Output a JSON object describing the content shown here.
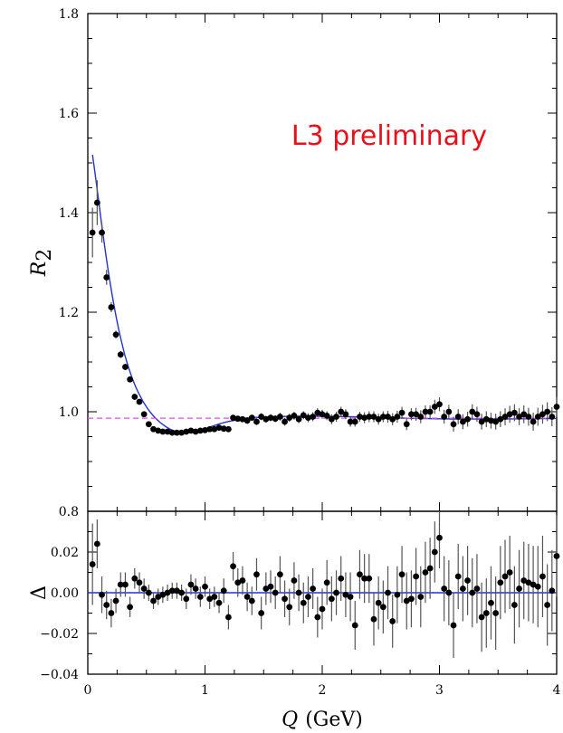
{
  "chart_data": [
    {
      "type": "scatter",
      "panel": "upper",
      "ylabel_symbol": "R",
      "ylabel_subscript": "2",
      "annotation": "L3 preliminary",
      "annotation_color": "#e8101a",
      "xlim": [
        0,
        4
      ],
      "ylim": [
        0.8,
        1.8
      ],
      "yticks": [
        "0.8",
        "1.0",
        "1.2",
        "1.4",
        "1.6",
        "1.8"
      ],
      "ytick_values": [
        0.8,
        1.0,
        1.2,
        1.4,
        1.6,
        1.8
      ],
      "fit_color": "#2233cc",
      "baseline_color": "#ee44ee",
      "baseline_value": 0.987,
      "x": [
        0.04,
        0.08,
        0.12,
        0.16,
        0.2,
        0.24,
        0.28,
        0.32,
        0.36,
        0.4,
        0.44,
        0.48,
        0.52,
        0.56,
        0.6,
        0.64,
        0.68,
        0.72,
        0.76,
        0.8,
        0.84,
        0.88,
        0.92,
        0.96,
        1.0,
        1.04,
        1.08,
        1.12,
        1.16,
        1.2,
        1.24,
        1.28,
        1.32,
        1.36,
        1.4,
        1.44,
        1.48,
        1.52,
        1.56,
        1.6,
        1.64,
        1.68,
        1.72,
        1.76,
        1.8,
        1.84,
        1.88,
        1.92,
        1.96,
        2.0,
        2.04,
        2.08,
        2.12,
        2.16,
        2.2,
        2.24,
        2.28,
        2.32,
        2.36,
        2.4,
        2.44,
        2.48,
        2.52,
        2.56,
        2.6,
        2.64,
        2.68,
        2.72,
        2.76,
        2.8,
        2.84,
        2.88,
        2.92,
        2.96,
        3.0,
        3.04,
        3.08,
        3.12,
        3.16,
        3.2,
        3.24,
        3.28,
        3.32,
        3.36,
        3.4,
        3.44,
        3.48,
        3.52,
        3.56,
        3.6,
        3.64,
        3.68,
        3.72,
        3.76,
        3.8,
        3.84,
        3.88,
        3.92,
        3.96,
        4.0
      ],
      "y": [
        1.36,
        1.42,
        1.36,
        1.27,
        1.21,
        1.155,
        1.115,
        1.09,
        1.065,
        1.03,
        1.02,
        0.995,
        0.975,
        0.965,
        0.962,
        0.96,
        0.96,
        0.958,
        0.958,
        0.958,
        0.96,
        0.962,
        0.96,
        0.962,
        0.963,
        0.965,
        0.965,
        0.968,
        0.966,
        0.965,
        0.988,
        0.986,
        0.985,
        0.982,
        0.988,
        0.98,
        0.99,
        0.985,
        0.988,
        0.986,
        0.99,
        0.98,
        0.988,
        0.992,
        0.985,
        0.993,
        0.988,
        0.99,
        0.998,
        0.995,
        0.992,
        0.985,
        0.99,
        1.0,
        0.995,
        0.98,
        0.98,
        0.99,
        0.988,
        0.99,
        0.99,
        0.985,
        0.99,
        0.99,
        0.985,
        0.99,
        0.998,
        0.975,
        0.995,
        0.995,
        0.99,
        1.0,
        1.0,
        1.01,
        1.015,
        0.99,
        1.0,
        0.975,
        0.99,
        0.98,
        0.985,
        1.0,
        0.995,
        0.98,
        0.985,
        0.982,
        0.98,
        0.985,
        0.99,
        0.995,
        0.998,
        0.99,
        0.995,
        0.99,
        0.98,
        0.99,
        0.995,
        1.0,
        0.99,
        1.01
      ],
      "yerr": [
        0.05,
        0.045,
        0.02,
        0.015,
        0.01,
        0.008,
        0.007,
        0.006,
        0.006,
        0.005,
        0.005,
        0.005,
        0.005,
        0.004,
        0.004,
        0.004,
        0.004,
        0.004,
        0.004,
        0.004,
        0.004,
        0.004,
        0.004,
        0.004,
        0.004,
        0.004,
        0.004,
        0.004,
        0.004,
        0.004,
        0.006,
        0.006,
        0.006,
        0.006,
        0.006,
        0.007,
        0.007,
        0.007,
        0.007,
        0.007,
        0.008,
        0.008,
        0.008,
        0.008,
        0.008,
        0.008,
        0.009,
        0.009,
        0.009,
        0.009,
        0.009,
        0.01,
        0.01,
        0.01,
        0.01,
        0.01,
        0.01,
        0.01,
        0.011,
        0.011,
        0.011,
        0.011,
        0.011,
        0.012,
        0.012,
        0.012,
        0.012,
        0.012,
        0.012,
        0.013,
        0.013,
        0.013,
        0.013,
        0.014,
        0.014,
        0.014,
        0.014,
        0.015,
        0.015,
        0.015,
        0.015,
        0.015,
        0.015,
        0.016,
        0.016,
        0.016,
        0.016,
        0.016,
        0.017,
        0.017,
        0.017,
        0.017,
        0.018,
        0.018,
        0.018,
        0.018,
        0.019,
        0.019,
        0.019,
        0.02
      ]
    },
    {
      "type": "scatter",
      "panel": "lower",
      "ylabel": "Δ",
      "xlabel_symbol": "Q",
      "xlabel_unit": "(GeV)",
      "xlim": [
        0,
        4
      ],
      "ylim": [
        -0.04,
        0.04
      ],
      "xticks": [
        "0",
        "1",
        "2",
        "3",
        "4"
      ],
      "xtick_values": [
        0,
        1,
        2,
        3,
        4
      ],
      "yticks": [
        "−0.04",
        "−0.02",
        "0.00",
        "0.02"
      ],
      "ytick_values": [
        -0.04,
        -0.02,
        0.0,
        0.02
      ],
      "zero_line_color": "#2233cc",
      "x": [
        0.04,
        0.08,
        0.12,
        0.16,
        0.2,
        0.24,
        0.28,
        0.32,
        0.36,
        0.4,
        0.44,
        0.48,
        0.52,
        0.56,
        0.6,
        0.64,
        0.68,
        0.72,
        0.76,
        0.8,
        0.84,
        0.88,
        0.92,
        0.96,
        1.0,
        1.04,
        1.08,
        1.12,
        1.16,
        1.2,
        1.24,
        1.28,
        1.32,
        1.36,
        1.4,
        1.44,
        1.48,
        1.52,
        1.56,
        1.6,
        1.64,
        1.68,
        1.72,
        1.76,
        1.8,
        1.84,
        1.88,
        1.92,
        1.96,
        2.0,
        2.04,
        2.08,
        2.12,
        2.16,
        2.2,
        2.24,
        2.28,
        2.32,
        2.36,
        2.4,
        2.44,
        2.48,
        2.52,
        2.56,
        2.6,
        2.64,
        2.68,
        2.72,
        2.76,
        2.8,
        2.84,
        2.88,
        2.92,
        2.96,
        3.0,
        3.04,
        3.08,
        3.12,
        3.16,
        3.2,
        3.24,
        3.28,
        3.32,
        3.36,
        3.4,
        3.44,
        3.48,
        3.52,
        3.56,
        3.6,
        3.64,
        3.68,
        3.72,
        3.76,
        3.8,
        3.84,
        3.88,
        3.92,
        3.96,
        4.0
      ],
      "y": [
        0.014,
        0.024,
        -0.001,
        -0.006,
        -0.01,
        -0.004,
        0.004,
        0.004,
        -0.007,
        0.007,
        0.005,
        0.002,
        0.0,
        -0.004,
        -0.002,
        -0.001,
        0.0,
        0.001,
        0.001,
        0.0,
        -0.003,
        0.004,
        0.002,
        -0.002,
        0.003,
        -0.003,
        -0.002,
        -0.005,
        0.001,
        -0.012,
        0.013,
        0.005,
        0.006,
        -0.002,
        -0.004,
        0.009,
        -0.01,
        0.002,
        0.003,
        0.0,
        0.009,
        -0.003,
        -0.007,
        0.006,
        0.0,
        -0.005,
        -0.002,
        0.002,
        -0.012,
        -0.008,
        0.005,
        -0.003,
        0.0,
        0.007,
        -0.001,
        -0.002,
        -0.016,
        0.009,
        0.007,
        0.007,
        -0.013,
        -0.005,
        -0.007,
        0.0,
        -0.014,
        -0.001,
        0.009,
        -0.004,
        -0.003,
        0.008,
        -0.002,
        0.01,
        0.012,
        0.02,
        0.027,
        0.002,
        0.0,
        -0.016,
        0.008,
        0.002,
        0.006,
        0.0,
        0.002,
        -0.012,
        -0.01,
        -0.005,
        -0.01,
        0.005,
        0.008,
        0.01,
        -0.006,
        0.002,
        0.006,
        0.005,
        0.004,
        0.003,
        0.008,
        -0.006,
        0.001,
        0.018
      ],
      "yerr": [
        0.02,
        0.012,
        0.009,
        0.007,
        0.007,
        0.006,
        0.006,
        0.006,
        0.005,
        0.005,
        0.005,
        0.005,
        0.004,
        0.004,
        0.004,
        0.004,
        0.004,
        0.004,
        0.004,
        0.004,
        0.005,
        0.005,
        0.005,
        0.005,
        0.005,
        0.005,
        0.005,
        0.005,
        0.006,
        0.006,
        0.007,
        0.007,
        0.007,
        0.007,
        0.007,
        0.008,
        0.008,
        0.008,
        0.008,
        0.008,
        0.009,
        0.009,
        0.009,
        0.009,
        0.009,
        0.01,
        0.01,
        0.01,
        0.01,
        0.01,
        0.011,
        0.011,
        0.011,
        0.011,
        0.011,
        0.012,
        0.012,
        0.012,
        0.012,
        0.012,
        0.013,
        0.013,
        0.013,
        0.013,
        0.013,
        0.014,
        0.014,
        0.014,
        0.014,
        0.014,
        0.015,
        0.015,
        0.015,
        0.015,
        0.015,
        0.016,
        0.016,
        0.016,
        0.016,
        0.016,
        0.017,
        0.017,
        0.017,
        0.017,
        0.017,
        0.018,
        0.018,
        0.018,
        0.018,
        0.018,
        0.019,
        0.019,
        0.019,
        0.019,
        0.019,
        0.02,
        0.02,
        0.02,
        0.02,
        0.02
      ]
    }
  ]
}
